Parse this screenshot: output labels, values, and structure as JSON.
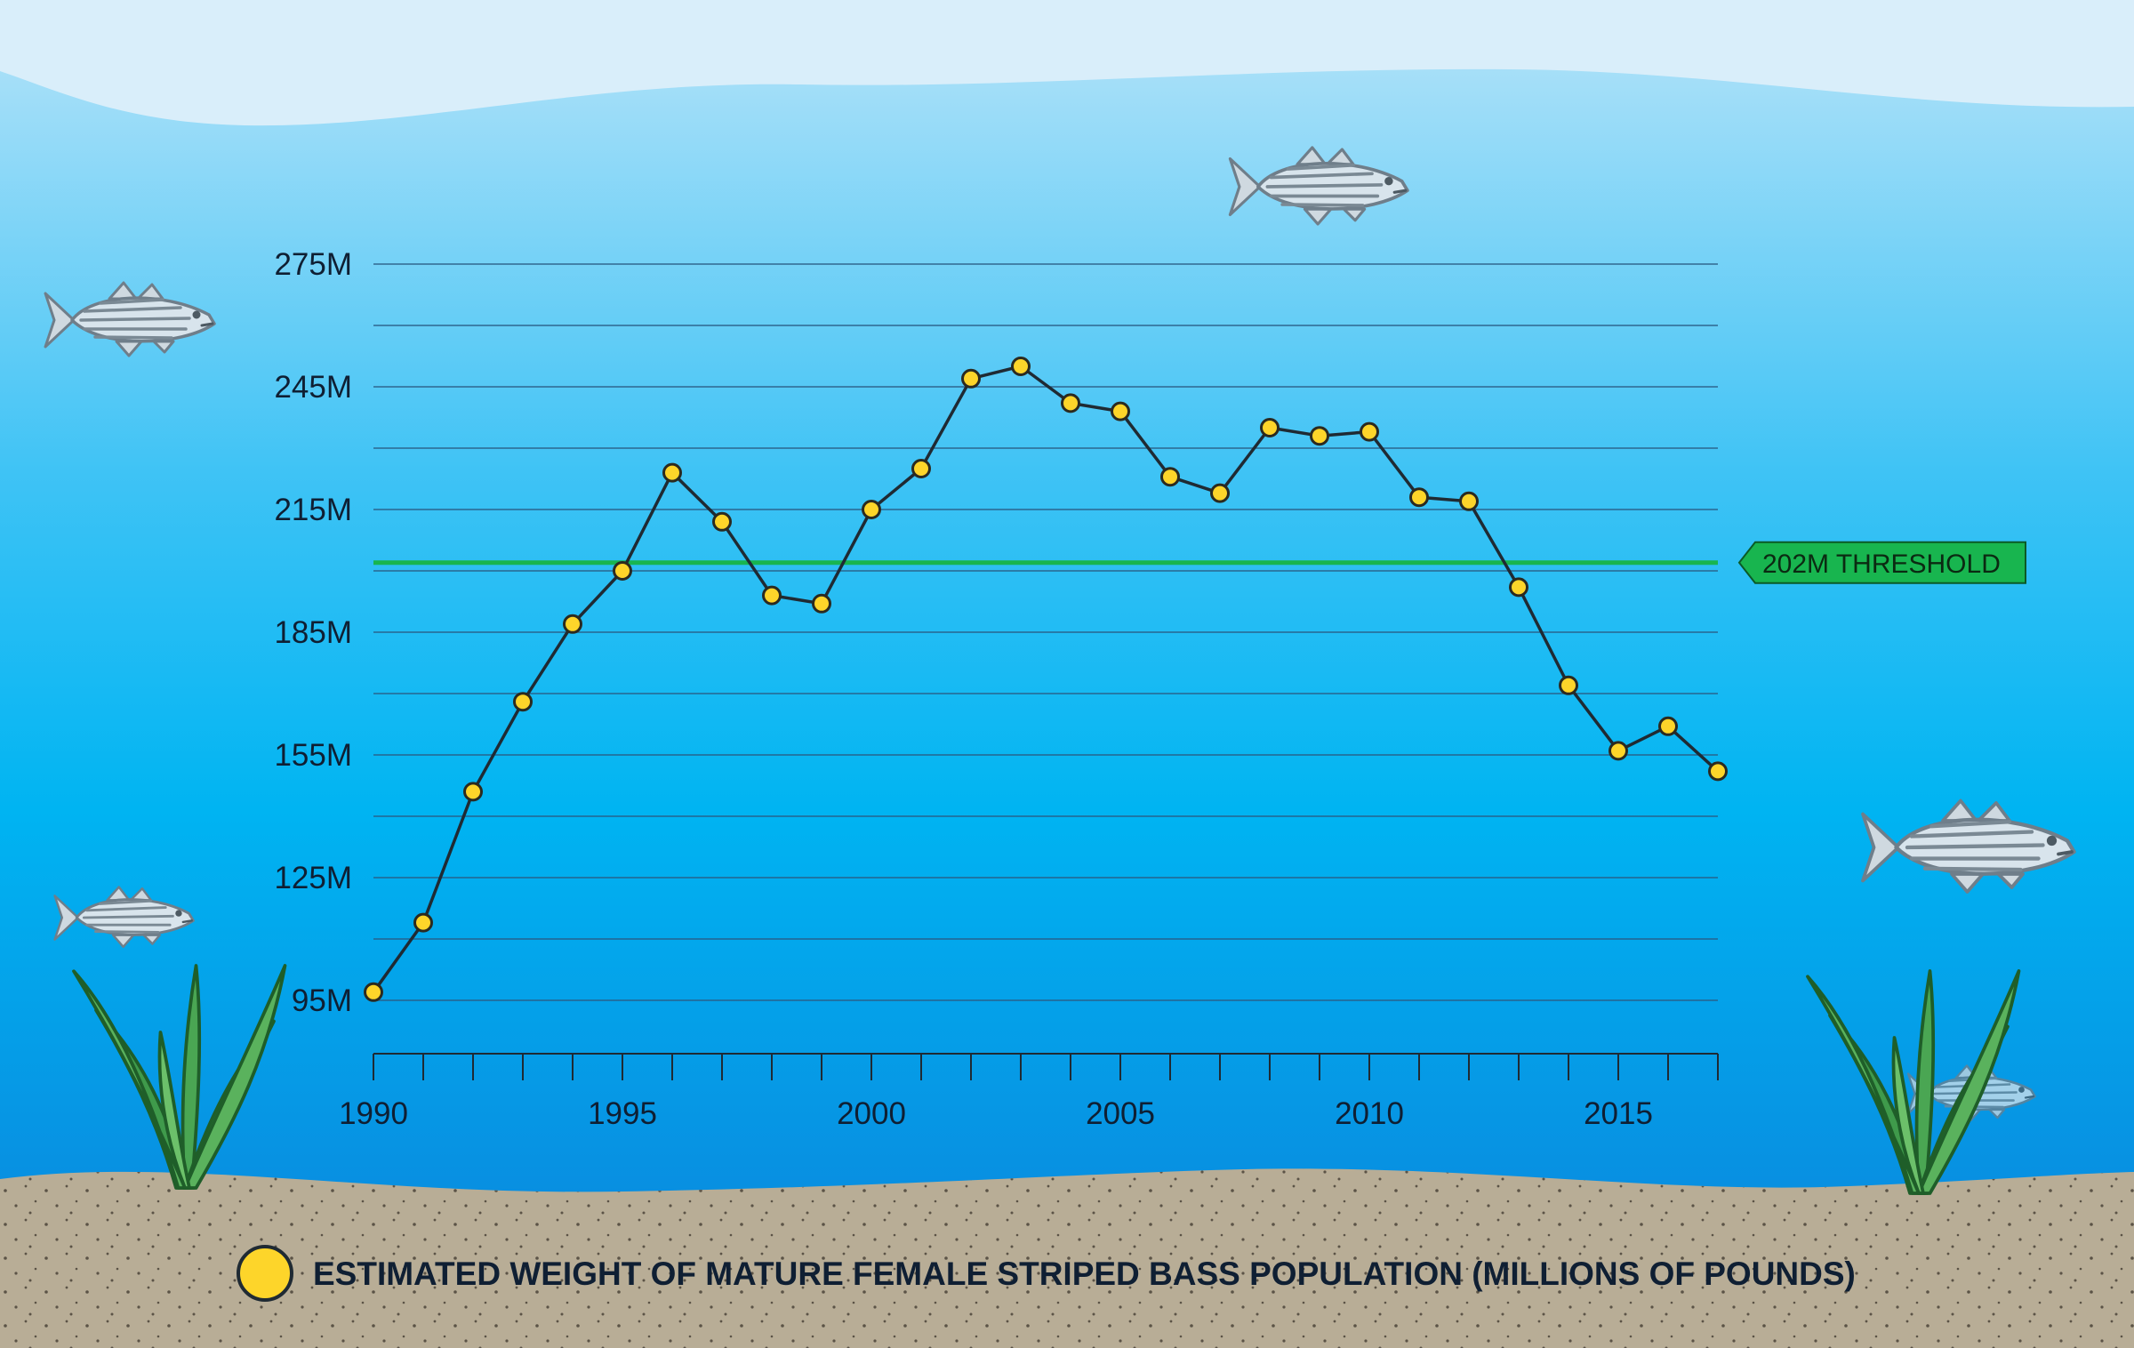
{
  "colors": {
    "sky_top": "#dbeefa",
    "water_top": "#b8e4f9",
    "water_mid": "#00b6f4",
    "water_bottom": "#0e83dc",
    "sand": "#b8ad96",
    "line": "#1f2a33",
    "marker": "#fdd52a",
    "marker_stroke": "#4a3a10",
    "threshold": "#18b54f",
    "grid": "#2a5c84"
  },
  "icons": [
    "fish-icon",
    "seaweed-icon"
  ],
  "chart_data": {
    "type": "line",
    "title": "",
    "xlabel": "",
    "ylabel": "",
    "xlim": [
      1990,
      2017
    ],
    "ylim": [
      82,
      287
    ],
    "x_ticks": [
      1990,
      1995,
      2000,
      2005,
      2010,
      2015
    ],
    "x_tick_labels": [
      "1990",
      "1995",
      "2000",
      "2005",
      "2010",
      "2015"
    ],
    "y_ticks": [
      95,
      125,
      155,
      185,
      215,
      245,
      275
    ],
    "y_tick_labels": [
      "95M",
      "125M",
      "155M",
      "185M",
      "215M",
      "245M",
      "275M"
    ],
    "grid": true,
    "legend": {
      "position": "bottom",
      "label": "ESTIMATED WEIGHT OF MATURE FEMALE STRIPED BASS POPULATION (MILLIONS OF POUNDS)"
    },
    "series": [
      {
        "name": "ESTIMATED WEIGHT OF MATURE FEMALE STRIPED BASS POPULATION (MILLIONS OF POUNDS)",
        "x": [
          1990,
          1991,
          1992,
          1993,
          1994,
          1995,
          1996,
          1997,
          1998,
          1999,
          2000,
          2001,
          2002,
          2003,
          2004,
          2005,
          2006,
          2007,
          2008,
          2009,
          2010,
          2011,
          2012,
          2013,
          2014,
          2015,
          2016,
          2017
        ],
        "values": [
          97,
          114,
          146,
          168,
          187,
          200,
          224,
          212,
          194,
          192,
          215,
          225,
          247,
          250,
          241,
          239,
          223,
          219,
          235,
          233,
          234,
          218,
          217,
          196,
          172,
          156,
          162,
          151
        ]
      }
    ],
    "annotations": [
      {
        "type": "hline",
        "y": 202,
        "label": "202M THRESHOLD"
      }
    ]
  }
}
